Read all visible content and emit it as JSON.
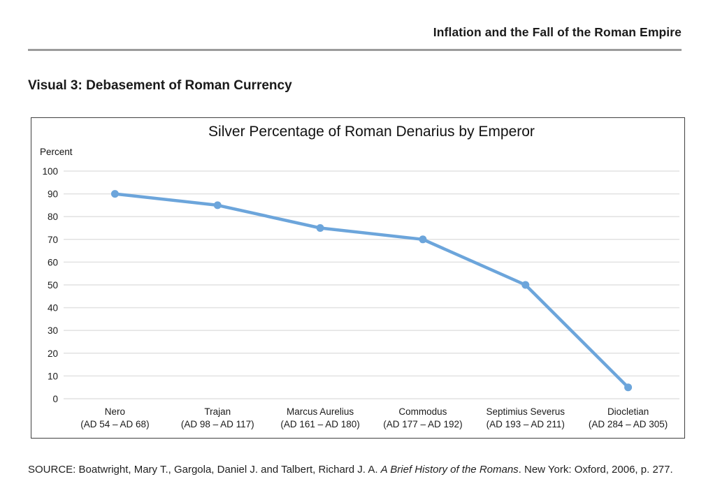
{
  "header": {
    "title": "Inflation and the Fall of the Roman Empire"
  },
  "page": {
    "heading": "Visual 3: Debasement of Roman Currency"
  },
  "chart_data": {
    "type": "line",
    "title": "Silver Percentage of Roman Denarius by Emperor",
    "ylabel": "Percent",
    "categories": [
      "Nero",
      "Trajan",
      "Marcus Aurelius",
      "Commodus",
      "Septimius Severus",
      "Diocletian"
    ],
    "category_sublabels": [
      "(AD 54 – AD 68)",
      "(AD 98 – AD 117)",
      "(AD 161 – AD 180)",
      "(AD 177 – AD 192)",
      "(AD 193 – AD 211)",
      "(AD 284 – AD 305)"
    ],
    "values": [
      90,
      85,
      75,
      70,
      50,
      5
    ],
    "ylim": [
      0,
      100
    ],
    "ytick_step": 10,
    "grid": true,
    "legend": "none",
    "line_color": "#6ca5db",
    "gridline_color": "#e2e2e2",
    "border_color": "#404040"
  },
  "source": {
    "prefix": "SOURCE: Boatwright, Mary T., Gargola, Daniel J. and Talbert, Richard J. A. ",
    "italic": "A Brief History of the Romans",
    "suffix": ". New York: Oxford, 2006, p. 277."
  }
}
